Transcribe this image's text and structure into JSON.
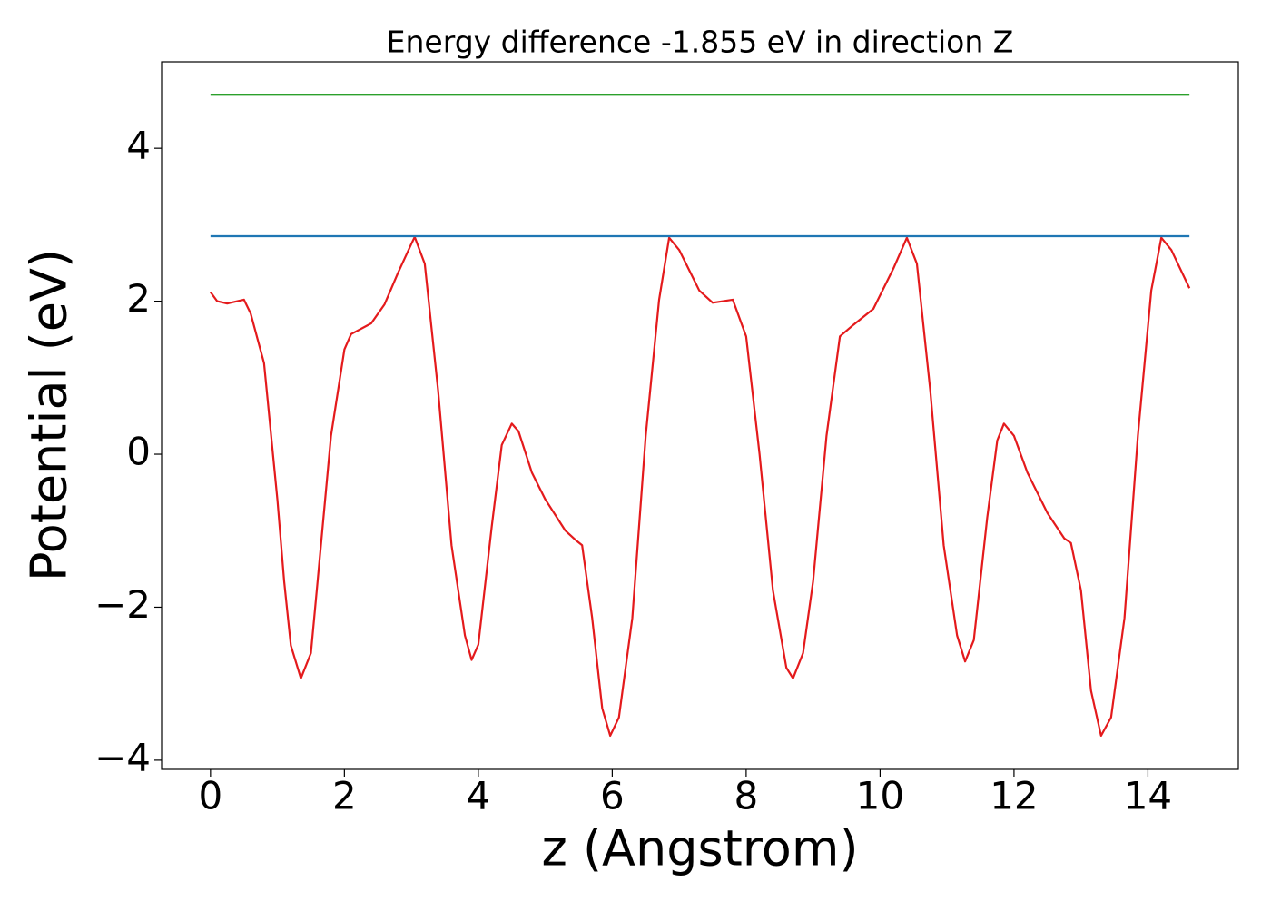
{
  "chart_data": {
    "type": "line",
    "title": "Energy difference -1.855 eV in direction Z",
    "x_label": "z (Angstrom)",
    "y_label": "Potential (eV)",
    "xlim": [
      -0.73,
      15.35
    ],
    "ylim": [
      -4.12,
      5.13
    ],
    "xticks": [
      0,
      2,
      4,
      6,
      8,
      10,
      12,
      14
    ],
    "yticks": [
      {
        "value": -4,
        "label": "−4"
      },
      {
        "value": -2,
        "label": "−2"
      },
      0,
      2,
      4
    ],
    "grid": false,
    "series": [
      {
        "color": "#e41a1c",
        "x": [
          0,
          0.1,
          0.25,
          0.5,
          0.6,
          0.8,
          1.0,
          1.1,
          1.2,
          1.35,
          1.5,
          1.6,
          1.8,
          2.0,
          2.1,
          2.4,
          2.6,
          2.8,
          3.0,
          3.05,
          3.2,
          3.4,
          3.6,
          3.8,
          3.9,
          4.0,
          4.2,
          4.35,
          4.5,
          4.6,
          4.8,
          5.0,
          5.3,
          5.45,
          5.55,
          5.7,
          5.85,
          5.97,
          6.1,
          6.3,
          6.5,
          6.7,
          6.85,
          7.0,
          7.3,
          7.5,
          7.8,
          8.0,
          8.2,
          8.4,
          8.6,
          8.7,
          8.85,
          9.0,
          9.2,
          9.4,
          9.6,
          9.9,
          10.2,
          10.4,
          10.55,
          10.75,
          10.95,
          11.15,
          11.27,
          11.4,
          11.6,
          11.75,
          11.85,
          12.0,
          12.2,
          12.5,
          12.75,
          12.85,
          13.0,
          13.15,
          13.3,
          13.45,
          13.65,
          13.85,
          14.05,
          14.2,
          14.35,
          14.62
        ],
        "values": [
          2.12,
          2.0,
          1.97,
          2.02,
          1.84,
          1.19,
          -0.6,
          -1.66,
          -2.5,
          -2.93,
          -2.6,
          -1.66,
          0.24,
          1.37,
          1.57,
          1.71,
          1.96,
          2.37,
          2.75,
          2.84,
          2.49,
          0.83,
          -1.19,
          -2.37,
          -2.69,
          -2.49,
          -0.95,
          0.12,
          0.4,
          0.3,
          -0.24,
          -0.59,
          -1.0,
          -1.12,
          -1.19,
          -2.14,
          -3.32,
          -3.68,
          -3.44,
          -2.14,
          0.24,
          2.02,
          2.83,
          2.67,
          2.14,
          1.98,
          2.02,
          1.54,
          0,
          -1.78,
          -2.79,
          -2.93,
          -2.6,
          -1.66,
          0.24,
          1.54,
          1.69,
          1.9,
          2.43,
          2.83,
          2.49,
          0.83,
          -1.19,
          -2.37,
          -2.71,
          -2.43,
          -0.83,
          0.18,
          0.4,
          0.24,
          -0.24,
          -0.77,
          -1.1,
          -1.16,
          -1.78,
          -3.09,
          -3.68,
          -3.44,
          -2.14,
          0.24,
          2.14,
          2.83,
          2.67,
          2.17
        ]
      },
      {
        "color": "#1f77b4",
        "x": [
          0,
          14.62
        ],
        "values": [
          2.85,
          2.85
        ]
      },
      {
        "color": "#2ca02c",
        "x": [
          0,
          14.62
        ],
        "values": [
          4.7,
          4.7
        ]
      }
    ]
  }
}
